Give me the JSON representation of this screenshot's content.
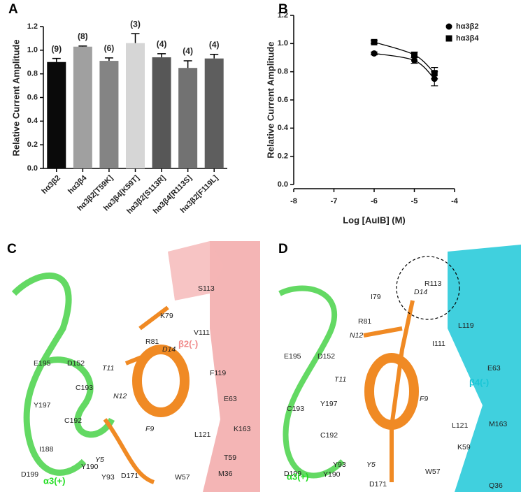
{
  "chart_data": [
    {
      "type": "bar",
      "panel": "A",
      "ylabel": "Relative Current Amplitude",
      "categories": [
        "hα3β2",
        "hα3β4",
        "hα3β2[T59K]",
        "hα3β4[K59T]",
        "hα3β2[S113R]",
        "hα3β4[R113S]",
        "hα3β2[F119L]"
      ],
      "values": [
        0.9,
        1.03,
        0.91,
        1.06,
        0.94,
        0.85,
        0.93
      ],
      "errors": [
        0.03,
        0.005,
        0.025,
        0.08,
        0.03,
        0.06,
        0.035
      ],
      "annotations": [
        "(9)",
        "(8)",
        "(6)",
        "(3)",
        "(4)",
        "(4)",
        "(4)"
      ],
      "colors": [
        "#0a0a0a",
        "#a0a0a0",
        "#848484",
        "#d6d6d6",
        "#575757",
        "#727272",
        "#5e5e5e"
      ],
      "ylim": [
        0,
        1.2
      ],
      "yticks": [
        {
          "value": 0,
          "label": "0.0"
        },
        {
          "value": 0.2,
          "label": "0.2"
        },
        {
          "value": 0.4,
          "label": "0.4"
        },
        {
          "value": 0.6,
          "label": "0.6"
        },
        {
          "value": 0.8,
          "label": "0.8"
        },
        {
          "value": 1,
          "label": "1.0"
        },
        {
          "value": 1.2,
          "label": "1.2"
        }
      ]
    },
    {
      "type": "scatter",
      "panel": "B",
      "xlabel": "Log [AuIB] (M)",
      "ylabel": "Relative Current Amplitude",
      "series": [
        {
          "name": "hα3β2",
          "marker": "circle",
          "color": "#000000",
          "x": [
            -6,
            -5,
            -4.5
          ],
          "values": [
            0.93,
            0.88,
            0.75
          ],
          "errors": [
            0.01,
            0.02,
            0.05
          ]
        },
        {
          "name": "hα3β4",
          "marker": "square",
          "color": "#000000",
          "x": [
            -6,
            -5,
            -4.5
          ],
          "values": [
            1.01,
            0.92,
            0.79
          ],
          "errors": [
            0.01,
            0.02,
            0.04
          ]
        }
      ],
      "xlim": [
        -8,
        -4
      ],
      "xticks": [
        -8,
        -7,
        -6,
        -5,
        -4
      ],
      "ylim": [
        0,
        1.2
      ],
      "yticks": [
        {
          "value": 0,
          "label": "0.0"
        },
        {
          "value": 0.2,
          "label": "0.2"
        },
        {
          "value": 0.4,
          "label": "0.4"
        },
        {
          "value": 0.6,
          "label": "0.6"
        },
        {
          "value": 0.8,
          "label": "0.8"
        },
        {
          "value": 1,
          "label": "1.0"
        },
        {
          "value": 1.2,
          "label": "1.2"
        }
      ],
      "legend": "upper right"
    }
  ],
  "structures": [
    {
      "panel": "C",
      "labels": [
        {
          "text": "S113"
        },
        {
          "text": "K79"
        },
        {
          "text": "β2(-)",
          "color": "#f08a8a"
        },
        {
          "text": "V111"
        },
        {
          "text": "R81"
        },
        {
          "text": "D14",
          "italic": true
        },
        {
          "text": "E195"
        },
        {
          "text": "D152"
        },
        {
          "text": "T11",
          "italic": true
        },
        {
          "text": "F119"
        },
        {
          "text": "E63"
        },
        {
          "text": "C193"
        },
        {
          "text": "N12",
          "italic": true
        },
        {
          "text": "Y197"
        },
        {
          "text": "K163"
        },
        {
          "text": "C192"
        },
        {
          "text": "F9",
          "italic": true
        },
        {
          "text": "L121"
        },
        {
          "text": "T59"
        },
        {
          "text": "I188"
        },
        {
          "text": "Y5",
          "italic": true
        },
        {
          "text": "Y190"
        },
        {
          "text": "Y93"
        },
        {
          "text": "D171"
        },
        {
          "text": "W57"
        },
        {
          "text": "M36"
        },
        {
          "text": "D199"
        },
        {
          "text": "α3(+)",
          "color": "#22dd22"
        }
      ]
    },
    {
      "panel": "D",
      "labels": [
        {
          "text": "R113"
        },
        {
          "text": "I79"
        },
        {
          "text": "D14",
          "italic": true
        },
        {
          "text": "R81"
        },
        {
          "text": "L119"
        },
        {
          "text": "N12",
          "italic": true
        },
        {
          "text": "E195"
        },
        {
          "text": "D152"
        },
        {
          "text": "I111"
        },
        {
          "text": "E63"
        },
        {
          "text": "T11",
          "italic": true
        },
        {
          "text": "β4(-)",
          "color": "#19c6d6"
        },
        {
          "text": "F9",
          "italic": true
        },
        {
          "text": "Y197"
        },
        {
          "text": "C193"
        },
        {
          "text": "L121"
        },
        {
          "text": "M163"
        },
        {
          "text": "C192"
        },
        {
          "text": "K59"
        },
        {
          "text": "Y93"
        },
        {
          "text": "Y5",
          "italic": true
        },
        {
          "text": "W57"
        },
        {
          "text": "D199"
        },
        {
          "text": "Y190"
        },
        {
          "text": "D171"
        },
        {
          "text": "Q36"
        },
        {
          "text": "α3(+)",
          "color": "#22dd22"
        }
      ]
    }
  ]
}
